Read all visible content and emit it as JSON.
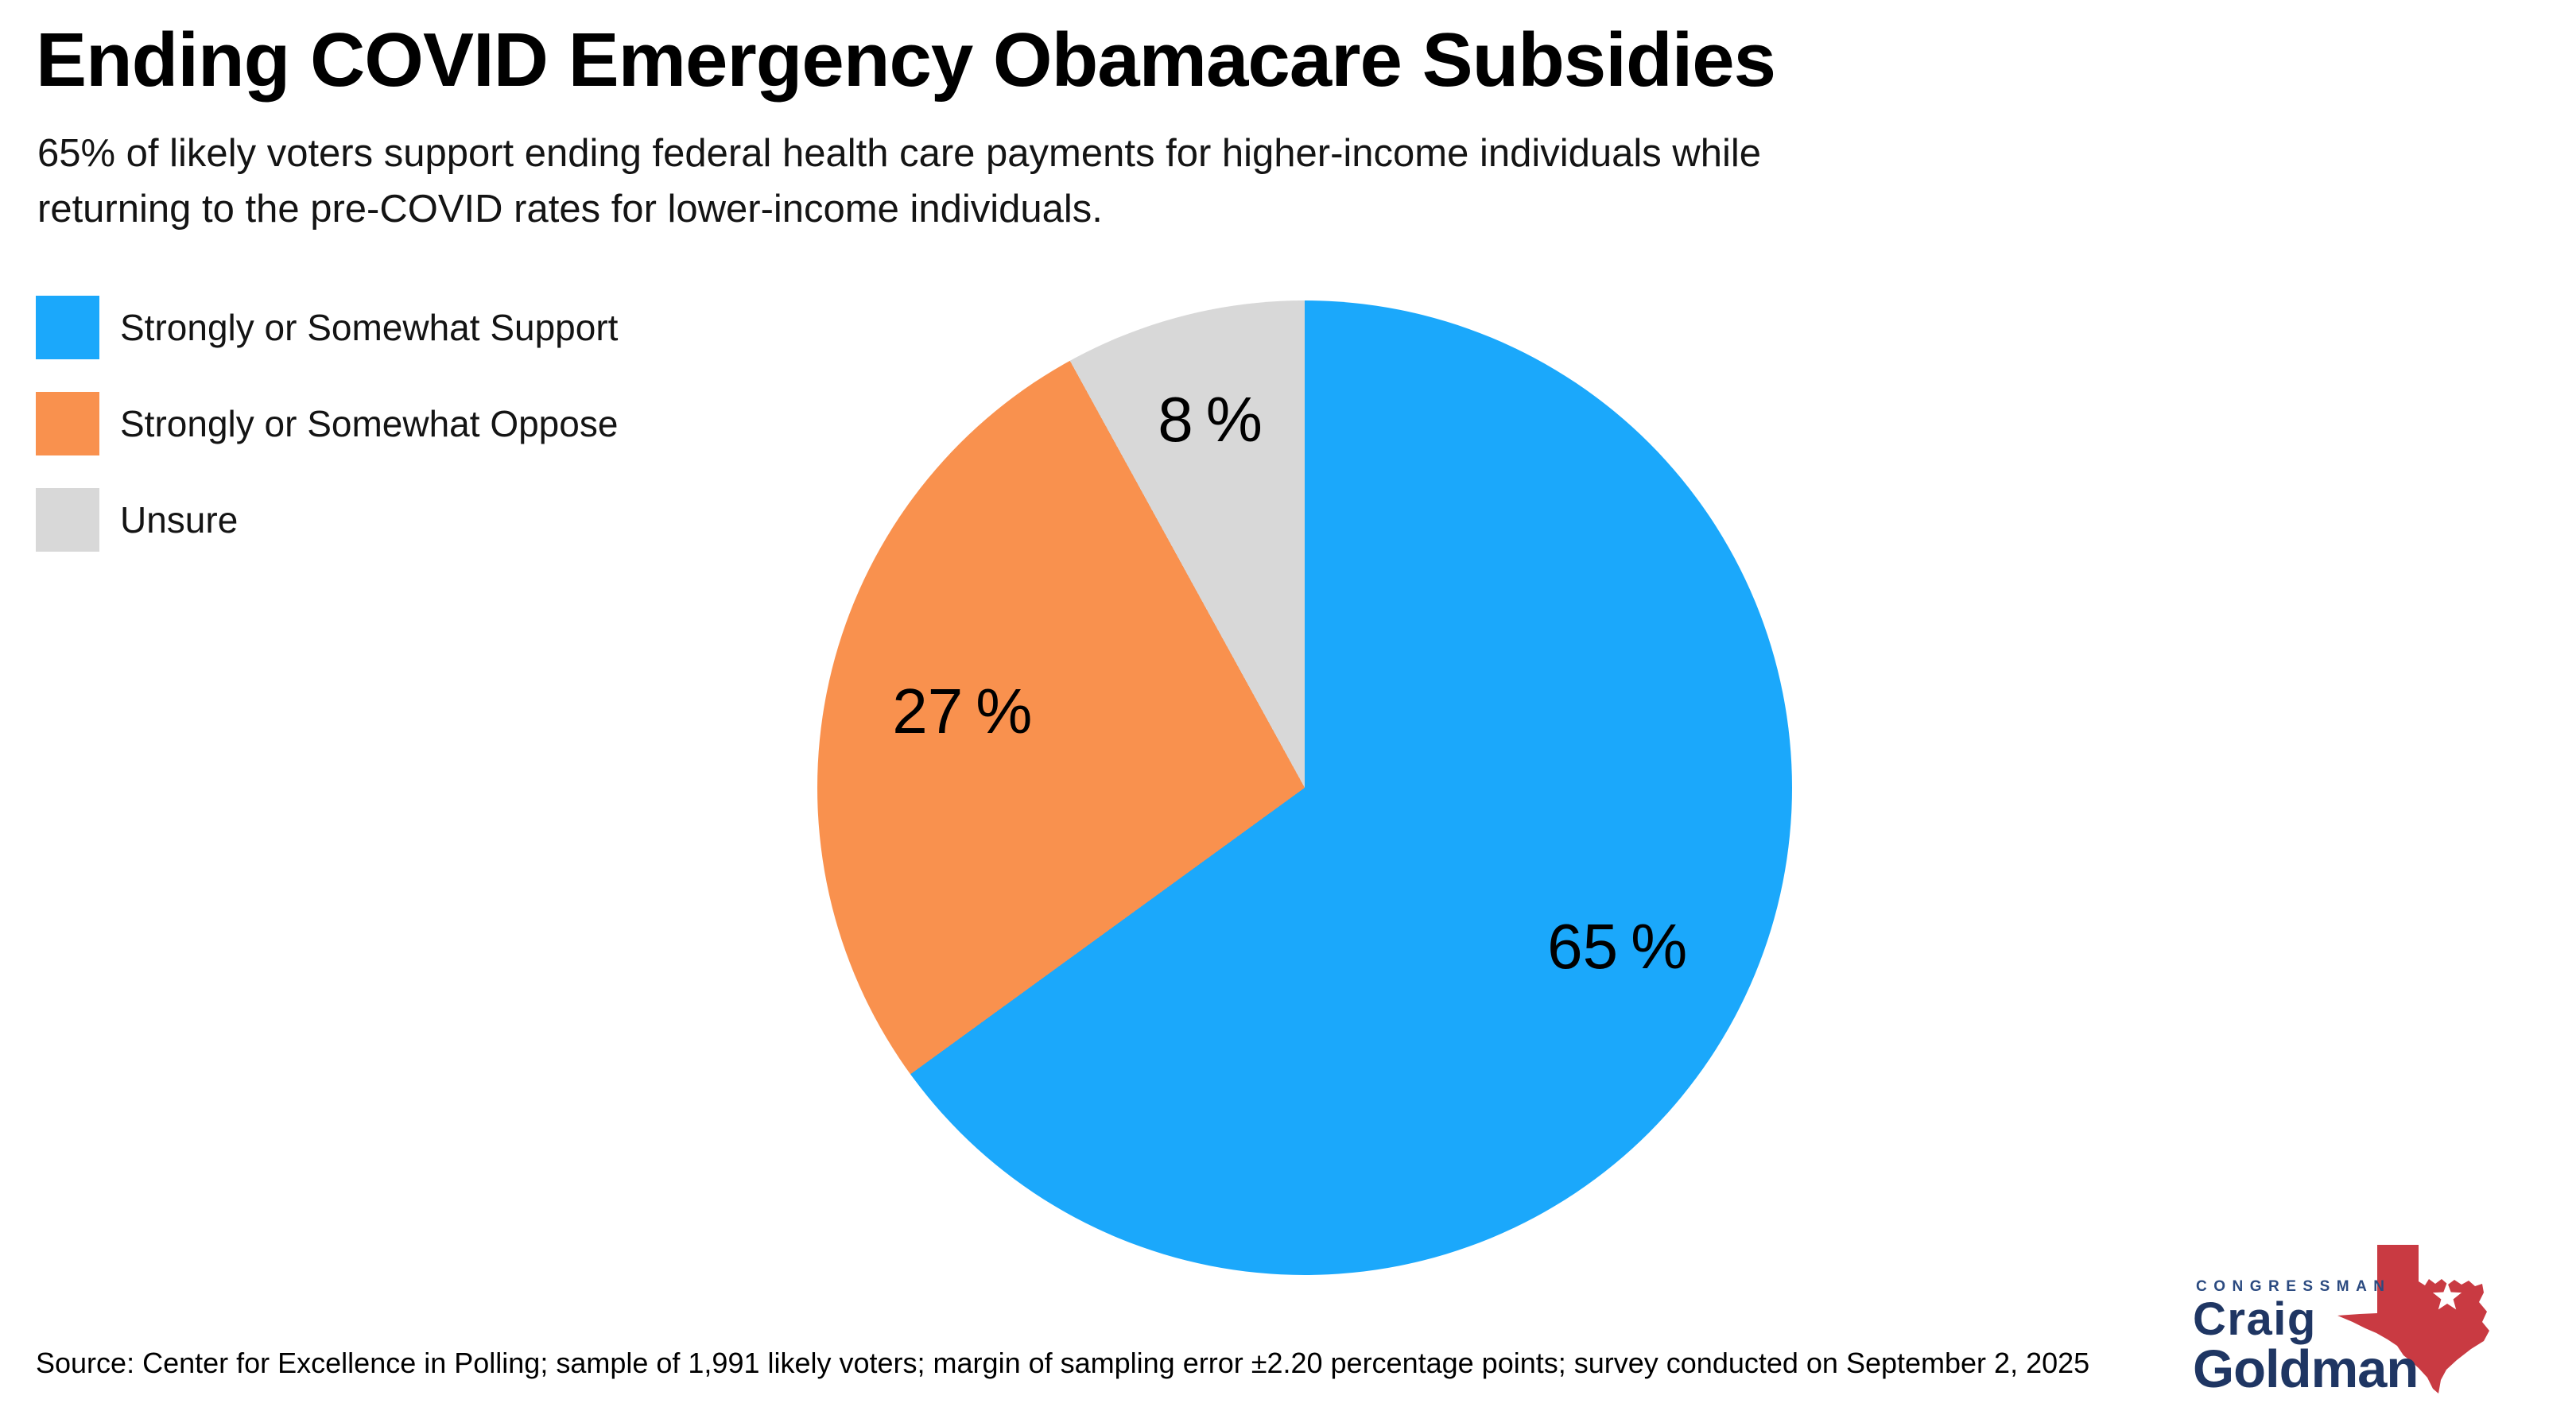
{
  "chart_data": {
    "type": "pie",
    "title": "Ending COVID Emergency Obamacare Subsidies",
    "subtitle_line1": "65% of likely voters support ending federal health care payments for higher-income individuals while",
    "subtitle_line2": "returning to the pre-COVID rates for lower-income individuals.",
    "slices": [
      {
        "label": "Strongly or Somewhat Support",
        "value": 65,
        "display": "65 %",
        "color": "#1BA8FB"
      },
      {
        "label": "Strongly or Somewhat Oppose",
        "value": 27,
        "display": "27 %",
        "color": "#F9914E"
      },
      {
        "label": "Unsure",
        "value": 8,
        "display": "8 %",
        "color": "#D8D8D8"
      }
    ],
    "start_angle_deg": 0,
    "direction": "clockwise",
    "legend_position": "top-left",
    "labels": "inside",
    "source": "Source: Center for Excellence in Polling; sample of 1,991 likely voters; margin of sampling error ±2.20 percentage points; survey conducted on September 2, 2025"
  },
  "logo": {
    "eyebrow": "CONGRESSMAN",
    "first_name": "Craig",
    "last_name": "Goldman",
    "eyebrow_navy": "#2B4A80",
    "navy": "#1F3663",
    "texas_red": "#C93A42",
    "star": "#FFFFFF"
  }
}
